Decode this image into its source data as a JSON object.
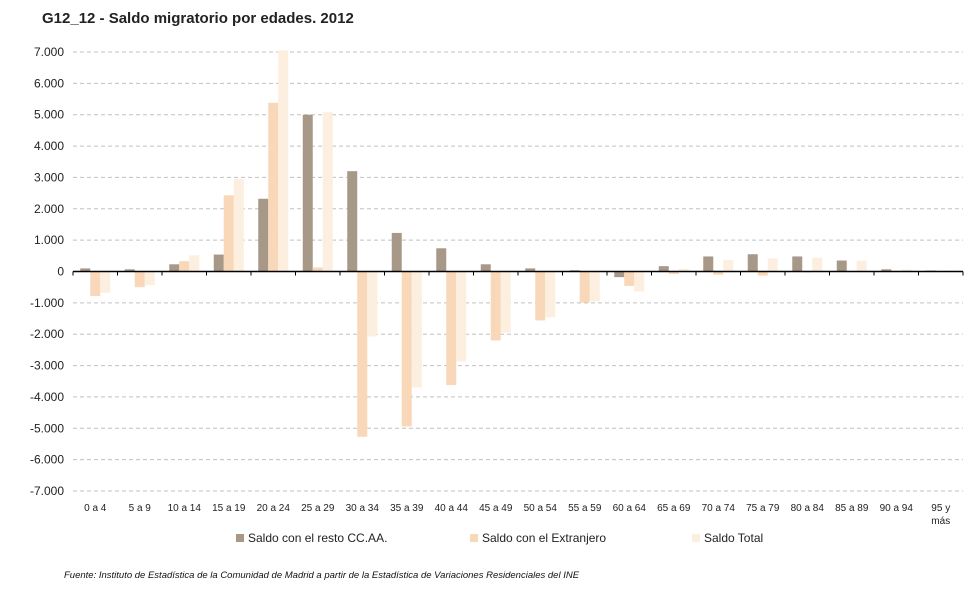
{
  "chart_data": {
    "type": "bar",
    "title": "G12_12 - Saldo migratorio por edades. 2012",
    "xlabel": "",
    "ylabel": "",
    "ylim": [
      -7000,
      7000
    ],
    "yticks": [
      7000,
      6000,
      5000,
      4000,
      3000,
      2000,
      1000,
      0,
      -1000,
      -2000,
      -3000,
      -4000,
      -5000,
      -6000,
      -7000
    ],
    "ytick_labels": [
      "7.000",
      "6.000",
      "5.000",
      "4.000",
      "3.000",
      "2.000",
      "1.000",
      "0",
      "-1.000",
      "-2.000",
      "-3.000",
      "-4.000",
      "-5.000",
      "-6.000",
      "-7.000"
    ],
    "grid": true,
    "legend_position": "bottom",
    "categories": [
      "0 a 4",
      "5 a 9",
      "10 a 14",
      "15 a 19",
      "20 a 24",
      "25 a 29",
      "30 a 34",
      "35 a 39",
      "40 a 44",
      "45 a 49",
      "50 a 54",
      "55 a 59",
      "60 a 64",
      "65 a 69",
      "70 a 74",
      "75 a 79",
      "80 a 84",
      "85 a 89",
      "90 a 94",
      "95 y más"
    ],
    "series": [
      {
        "name": "Saldo con el resto CC.AA.",
        "color": "#a89888",
        "values": [
          100,
          70,
          230,
          540,
          2320,
          5000,
          3200,
          1230,
          740,
          230,
          100,
          40,
          -180,
          170,
          480,
          550,
          480,
          350,
          70,
          30
        ]
      },
      {
        "name": "Saldo con el Extranjero",
        "color": "#f8d8b8",
        "values": [
          -780,
          -500,
          330,
          2430,
          5380,
          130,
          -5270,
          -4940,
          -3620,
          -2200,
          -1560,
          -990,
          -460,
          -80,
          -100,
          -130,
          -30,
          0,
          0,
          0
        ]
      },
      {
        "name": "Saldo Total",
        "color": "#fcefe0",
        "values": [
          -680,
          -430,
          520,
          2950,
          7050,
          5080,
          -2070,
          -3700,
          -2870,
          -1950,
          -1460,
          -950,
          -640,
          90,
          360,
          420,
          440,
          340,
          60,
          30
        ]
      }
    ]
  },
  "source": "Fuente: Instituto de Estadística de la Comunidad de Madrid a partir de la Estadística de Variaciones Residenciales del INE"
}
